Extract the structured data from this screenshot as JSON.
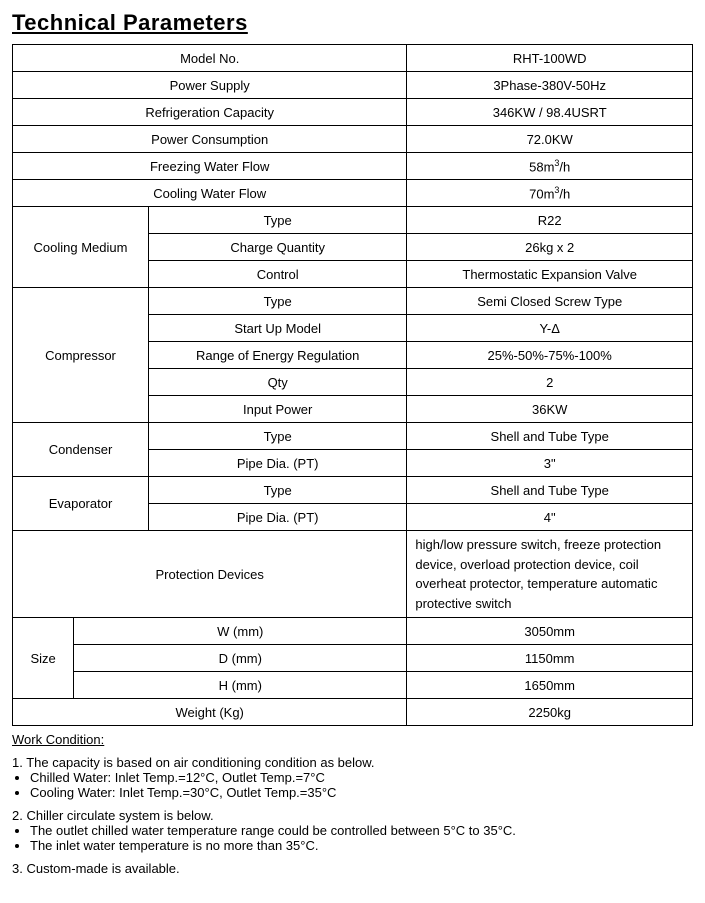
{
  "title": "Technical Parameters",
  "columns": {
    "labelGroup": 20,
    "label": 38,
    "value": 42
  },
  "rows_simple": [
    {
      "label": "Model No.",
      "value": "RHT-100WD"
    },
    {
      "label": "Power Supply",
      "value": "3Phase-380V-50Hz"
    },
    {
      "label": "Refrigeration Capacity",
      "value": "346KW / 98.4USRT"
    },
    {
      "label": "Power Consumption",
      "value": "72.0KW"
    },
    {
      "label": "Freezing Water Flow",
      "value_html": "58m<sup>3</sup>/h"
    },
    {
      "label": "Cooling Water Flow",
      "value_html": "70m<sup>3</sup>/h"
    }
  ],
  "groups": [
    {
      "name": "Cooling Medium",
      "rows": [
        {
          "label": "Type",
          "value": "R22"
        },
        {
          "label": "Charge Quantity",
          "value": "26kg x 2"
        },
        {
          "label": "Control",
          "value": "Thermostatic Expansion Valve"
        }
      ]
    },
    {
      "name": "Compressor",
      "rows": [
        {
          "label": "Type",
          "value": "Semi Closed Screw Type"
        },
        {
          "label": "Start Up Model",
          "value": "Y-Δ"
        },
        {
          "label": "Range of Energy Regulation",
          "value": "25%-50%-75%-100%"
        },
        {
          "label": "Qty",
          "value": "2"
        },
        {
          "label": "Input Power",
          "value": "36KW"
        }
      ]
    },
    {
      "name": "Condenser",
      "rows": [
        {
          "label": "Type",
          "value": "Shell and Tube Type"
        },
        {
          "label": "Pipe Dia. (PT)",
          "value": "3\""
        }
      ]
    },
    {
      "name": "Evaporator",
      "rows": [
        {
          "label": "Type",
          "value": "Shell and Tube Type"
        },
        {
          "label": "Pipe Dia. (PT)",
          "value": "4\""
        }
      ]
    }
  ],
  "protection": {
    "label": "Protection Devices",
    "value": "high/low pressure switch, freeze protection device, overload protection device, coil overheat protector, temperature automatic protective switch"
  },
  "size": {
    "name": "Size",
    "rows": [
      {
        "label": "W (mm)",
        "value": "3050mm"
      },
      {
        "label": "D (mm)",
        "value": "1150mm"
      },
      {
        "label": "H (mm)",
        "value": "1650mm"
      }
    ]
  },
  "weight": {
    "label": "Weight (Kg)",
    "value": "2250kg"
  },
  "work_condition": {
    "heading": "Work Condition:",
    "sections": [
      {
        "num": "1.",
        "text": "The capacity is based on air conditioning condition as below.",
        "bullets": [
          "Chilled Water: Inlet Temp.=12°C, Outlet Temp.=7°C",
          "Cooling Water: Inlet Temp.=30°C, Outlet Temp.=35°C"
        ]
      },
      {
        "num": "2.",
        "text": "Chiller circulate system is below.",
        "bullets": [
          "The outlet chilled water temperature range could be controlled between 5°C to 35°C.",
          "The inlet water temperature is no more than 35°C."
        ]
      },
      {
        "num": "3.",
        "text": "Custom-made is available.",
        "bullets": []
      }
    ]
  }
}
